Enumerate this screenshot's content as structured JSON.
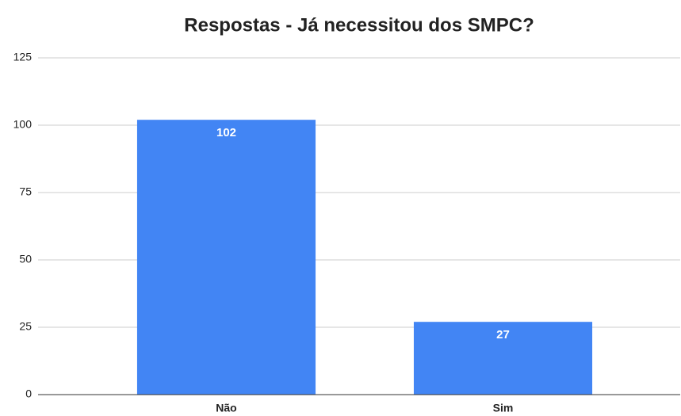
{
  "chart_data": {
    "type": "bar",
    "title": "Respostas - Já necessitou dos SMPC?",
    "categories": [
      "Não",
      "Sim"
    ],
    "values": [
      102,
      27
    ],
    "color": "#4285f4",
    "ylim": [
      0,
      125
    ],
    "yticks": [
      0,
      25,
      50,
      75,
      100,
      125
    ],
    "grid": true
  }
}
